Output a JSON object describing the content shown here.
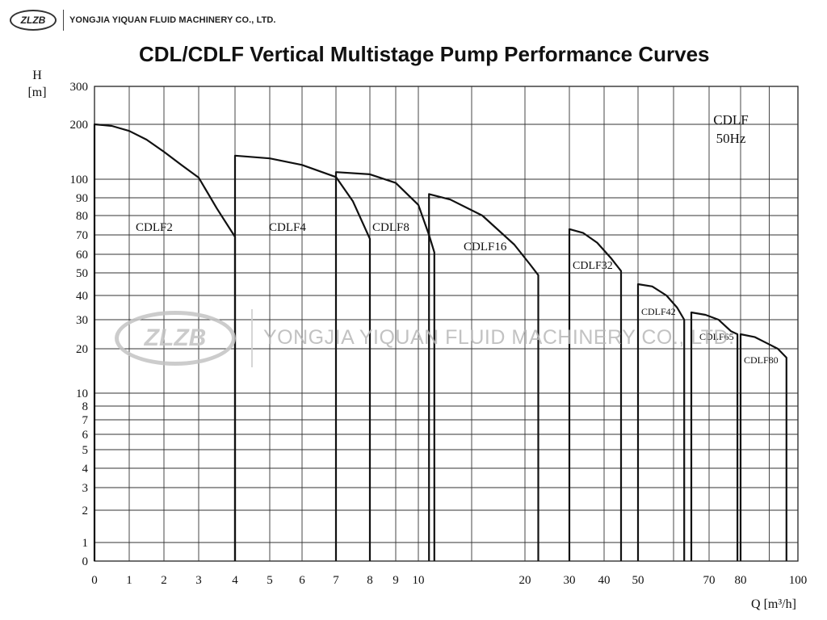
{
  "header": {
    "logo": "ZLZB",
    "company": "YONGJIA YIQUAN FLUID MACHINERY CO., LTD."
  },
  "chart_data": {
    "type": "line",
    "title": "CDL/CDLF Vertical Multistage Pump Performance Curves",
    "annotation": [
      "CDLF",
      "50Hz"
    ],
    "ylabel": [
      "H",
      "[m]"
    ],
    "xlabel": "Q [m³/h]",
    "grid": true,
    "yticks": [
      {
        "label": "300",
        "value": 300
      },
      {
        "label": "200",
        "value": 200
      },
      {
        "label": "100",
        "value": 100
      },
      {
        "label": "90",
        "value": 90
      },
      {
        "label": "80",
        "value": 80
      },
      {
        "label": "70",
        "value": 70
      },
      {
        "label": "60",
        "value": 60
      },
      {
        "label": "50",
        "value": 50
      },
      {
        "label": "40",
        "value": 40
      },
      {
        "label": "30",
        "value": 30
      },
      {
        "label": "20",
        "value": 20
      },
      {
        "label": "10",
        "value": 10
      },
      {
        "label": "8",
        "value": 8
      },
      {
        "label": "7",
        "value": 7
      },
      {
        "label": "6",
        "value": 6
      },
      {
        "label": "5",
        "value": 5
      },
      {
        "label": "4",
        "value": 4
      },
      {
        "label": "3",
        "value": 3
      },
      {
        "label": "2",
        "value": 2
      },
      {
        "label": "1",
        "value": 1
      },
      {
        "label": "0",
        "value": 0
      }
    ],
    "xticks": [
      {
        "label": "0",
        "value": 0
      },
      {
        "label": "1",
        "value": 1
      },
      {
        "label": "2",
        "value": 2
      },
      {
        "label": "3",
        "value": 3
      },
      {
        "label": "4",
        "value": 4
      },
      {
        "label": "5",
        "value": 5
      },
      {
        "label": "6",
        "value": 6
      },
      {
        "label": "7",
        "value": 7
      },
      {
        "label": "8",
        "value": 8
      },
      {
        "label": "9",
        "value": 9
      },
      {
        "label": "10",
        "value": 10
      },
      {
        "label": "20",
        "value": 20
      },
      {
        "label": "30",
        "value": 30
      },
      {
        "label": "40",
        "value": 40
      },
      {
        "label": "50",
        "value": 50
      },
      {
        "label": "70",
        "value": 70
      },
      {
        "label": "80",
        "value": 80
      },
      {
        "label": "100",
        "value": 100
      }
    ],
    "series": [
      {
        "name": "CDLF2",
        "points": [
          [
            0,
            200
          ],
          [
            0.5,
            197
          ],
          [
            1,
            188
          ],
          [
            1.5,
            172
          ],
          [
            2,
            150
          ],
          [
            2.5,
            126
          ],
          [
            3,
            103
          ],
          [
            3.5,
            84
          ],
          [
            4,
            69
          ]
        ]
      },
      {
        "name": "CDLF4",
        "points": [
          [
            4,
            143
          ],
          [
            5,
            138
          ],
          [
            6,
            126
          ],
          [
            7,
            104
          ],
          [
            7.5,
            88
          ],
          [
            8,
            68
          ]
        ]
      },
      {
        "name": "CDLF8",
        "points": [
          [
            7,
            113
          ],
          [
            8,
            109
          ],
          [
            9,
            98
          ],
          [
            10,
            86
          ],
          [
            11,
            70
          ],
          [
            11.5,
            61
          ]
        ]
      },
      {
        "name": "CDLF16",
        "points": [
          [
            11,
            92
          ],
          [
            13,
            89
          ],
          [
            16,
            80
          ],
          [
            19,
            65
          ],
          [
            21,
            55
          ],
          [
            23,
            49
          ]
        ]
      },
      {
        "name": "CDLF32",
        "points": [
          [
            30,
            73
          ],
          [
            34,
            71
          ],
          [
            38,
            66
          ],
          [
            42,
            58
          ],
          [
            45,
            51
          ]
        ]
      },
      {
        "name": "CDLF42",
        "points": [
          [
            50,
            45
          ],
          [
            54,
            44
          ],
          [
            58,
            40
          ],
          [
            61,
            35
          ],
          [
            63,
            30
          ]
        ]
      },
      {
        "name": "CDLF65",
        "points": [
          [
            65,
            33
          ],
          [
            69,
            32
          ],
          [
            73,
            30
          ],
          [
            77,
            26
          ],
          [
            79,
            25
          ]
        ]
      },
      {
        "name": "CDLF80",
        "points": [
          [
            80,
            25
          ],
          [
            85,
            24
          ],
          [
            89,
            22
          ],
          [
            93,
            20
          ],
          [
            96,
            18
          ]
        ]
      }
    ]
  }
}
